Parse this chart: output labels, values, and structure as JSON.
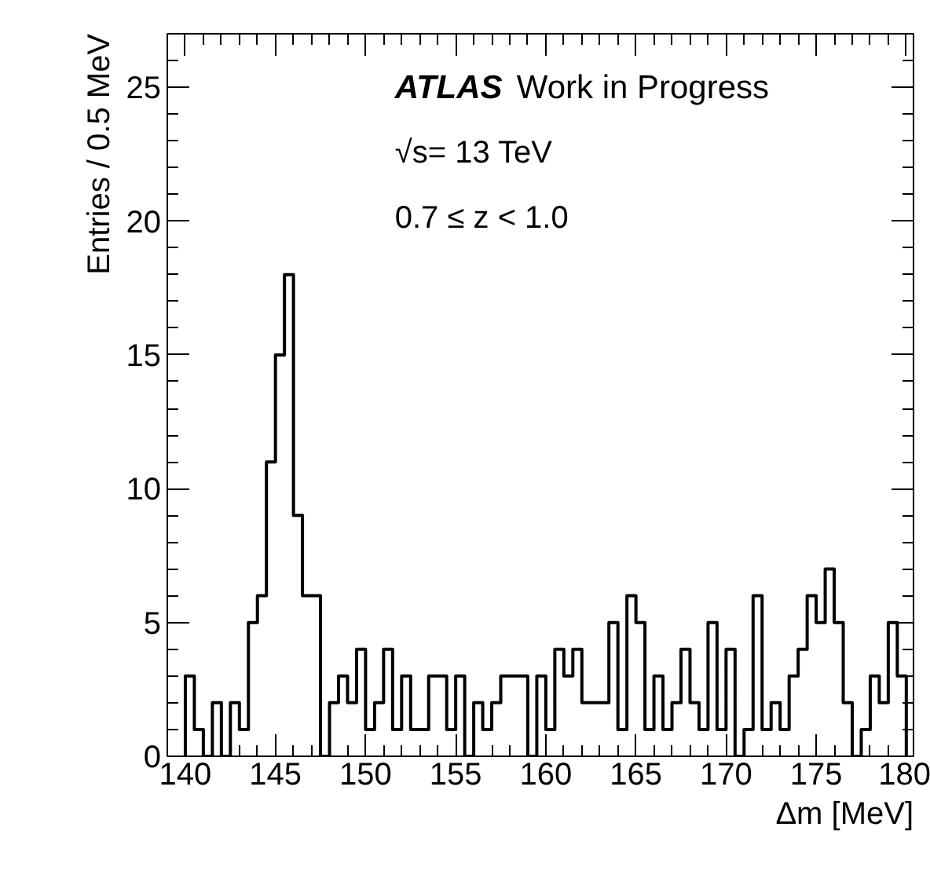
{
  "chart_data": {
    "type": "histogram",
    "xlabel": "Δm [MeV]",
    "ylabel": "Entries / 0.5 MeV",
    "annotations": [
      "ATLAS Work in Progress",
      "√s= 13 TeV",
      "0.7 ≤ z < 1.0"
    ],
    "bins": [
      140,
      140.5,
      141,
      141.5,
      142,
      142.5,
      143,
      143.5,
      144,
      144.5,
      145,
      145.5,
      146,
      146.5,
      147,
      147.5,
      148,
      148.5,
      149,
      149.5,
      150,
      150.5,
      151,
      151.5,
      152,
      152.5,
      153,
      153.5,
      154,
      154.5,
      155,
      155.5,
      156,
      156.5,
      157,
      157.5,
      158,
      158.5,
      159,
      159.5,
      160,
      160.5,
      161,
      161.5,
      162,
      162.5,
      163,
      163.5,
      164,
      164.5,
      165,
      165.5,
      166,
      166.5,
      167,
      167.5,
      168,
      168.5,
      169,
      169.5,
      170,
      170.5,
      171,
      171.5,
      172,
      172.5,
      173,
      173.5,
      174,
      174.5,
      175,
      175.5,
      176,
      176.5,
      177,
      177.5,
      178,
      178.5,
      179,
      179.5,
      180
    ],
    "values": [
      3,
      1,
      0,
      2,
      0,
      2,
      1,
      5,
      6,
      11,
      15,
      18,
      9,
      6,
      6,
      0,
      2,
      3,
      2,
      4,
      1,
      2,
      4,
      1,
      3,
      1,
      1,
      3,
      3,
      1,
      3,
      0,
      2,
      1,
      2,
      3,
      3,
      3,
      0,
      3,
      1,
      4,
      3,
      4,
      2,
      2,
      2,
      5,
      1,
      6,
      5,
      1,
      3,
      1,
      2,
      4,
      2,
      1,
      5,
      1,
      4,
      0,
      1,
      6,
      1,
      2,
      1,
      3,
      4,
      6,
      5,
      7,
      5,
      2,
      0,
      1,
      3,
      2,
      5,
      3
    ],
    "color": "#000000",
    "xlim": [
      139,
      180.4
    ],
    "ylim": [
      0,
      27
    ],
    "xticks": [
      140,
      145,
      150,
      155,
      160,
      165,
      170,
      175,
      180
    ],
    "yticks": [
      0,
      5,
      10,
      15,
      20,
      25
    ],
    "grid": false,
    "legend": false
  }
}
